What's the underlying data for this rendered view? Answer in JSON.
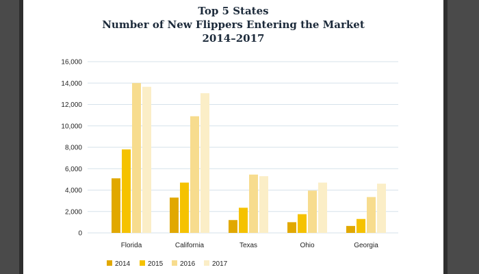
{
  "chart_data": {
    "type": "bar",
    "title": "Top 5 States",
    "subtitle": "Number of New Flippers Entering the Market",
    "subtitle2": "2014–2017",
    "categories": [
      "Florida",
      "California",
      "Texas",
      "Ohio",
      "Georgia"
    ],
    "series": [
      {
        "name": "2014",
        "color": "#e1a800",
        "values": [
          5100,
          3300,
          1200,
          1000,
          650
        ]
      },
      {
        "name": "2015",
        "color": "#f5c200",
        "values": [
          7800,
          4700,
          2350,
          1750,
          1300
        ]
      },
      {
        "name": "2016",
        "color": "#f7dc8e",
        "values": [
          14000,
          10900,
          5450,
          3950,
          3350
        ]
      },
      {
        "name": "2017",
        "color": "#fbeec7",
        "values": [
          13650,
          13050,
          5300,
          4700,
          4600
        ]
      }
    ],
    "ylim": [
      0,
      16000
    ],
    "yticks": [
      "0",
      "2,000",
      "4,000",
      "6,000",
      "8,000",
      "10,000",
      "12,000",
      "14,000",
      "16,000"
    ],
    "ytick_values": [
      0,
      2000,
      4000,
      6000,
      8000,
      10000,
      12000,
      14000,
      16000
    ],
    "grid": true,
    "legend_position": "bottom-left"
  }
}
